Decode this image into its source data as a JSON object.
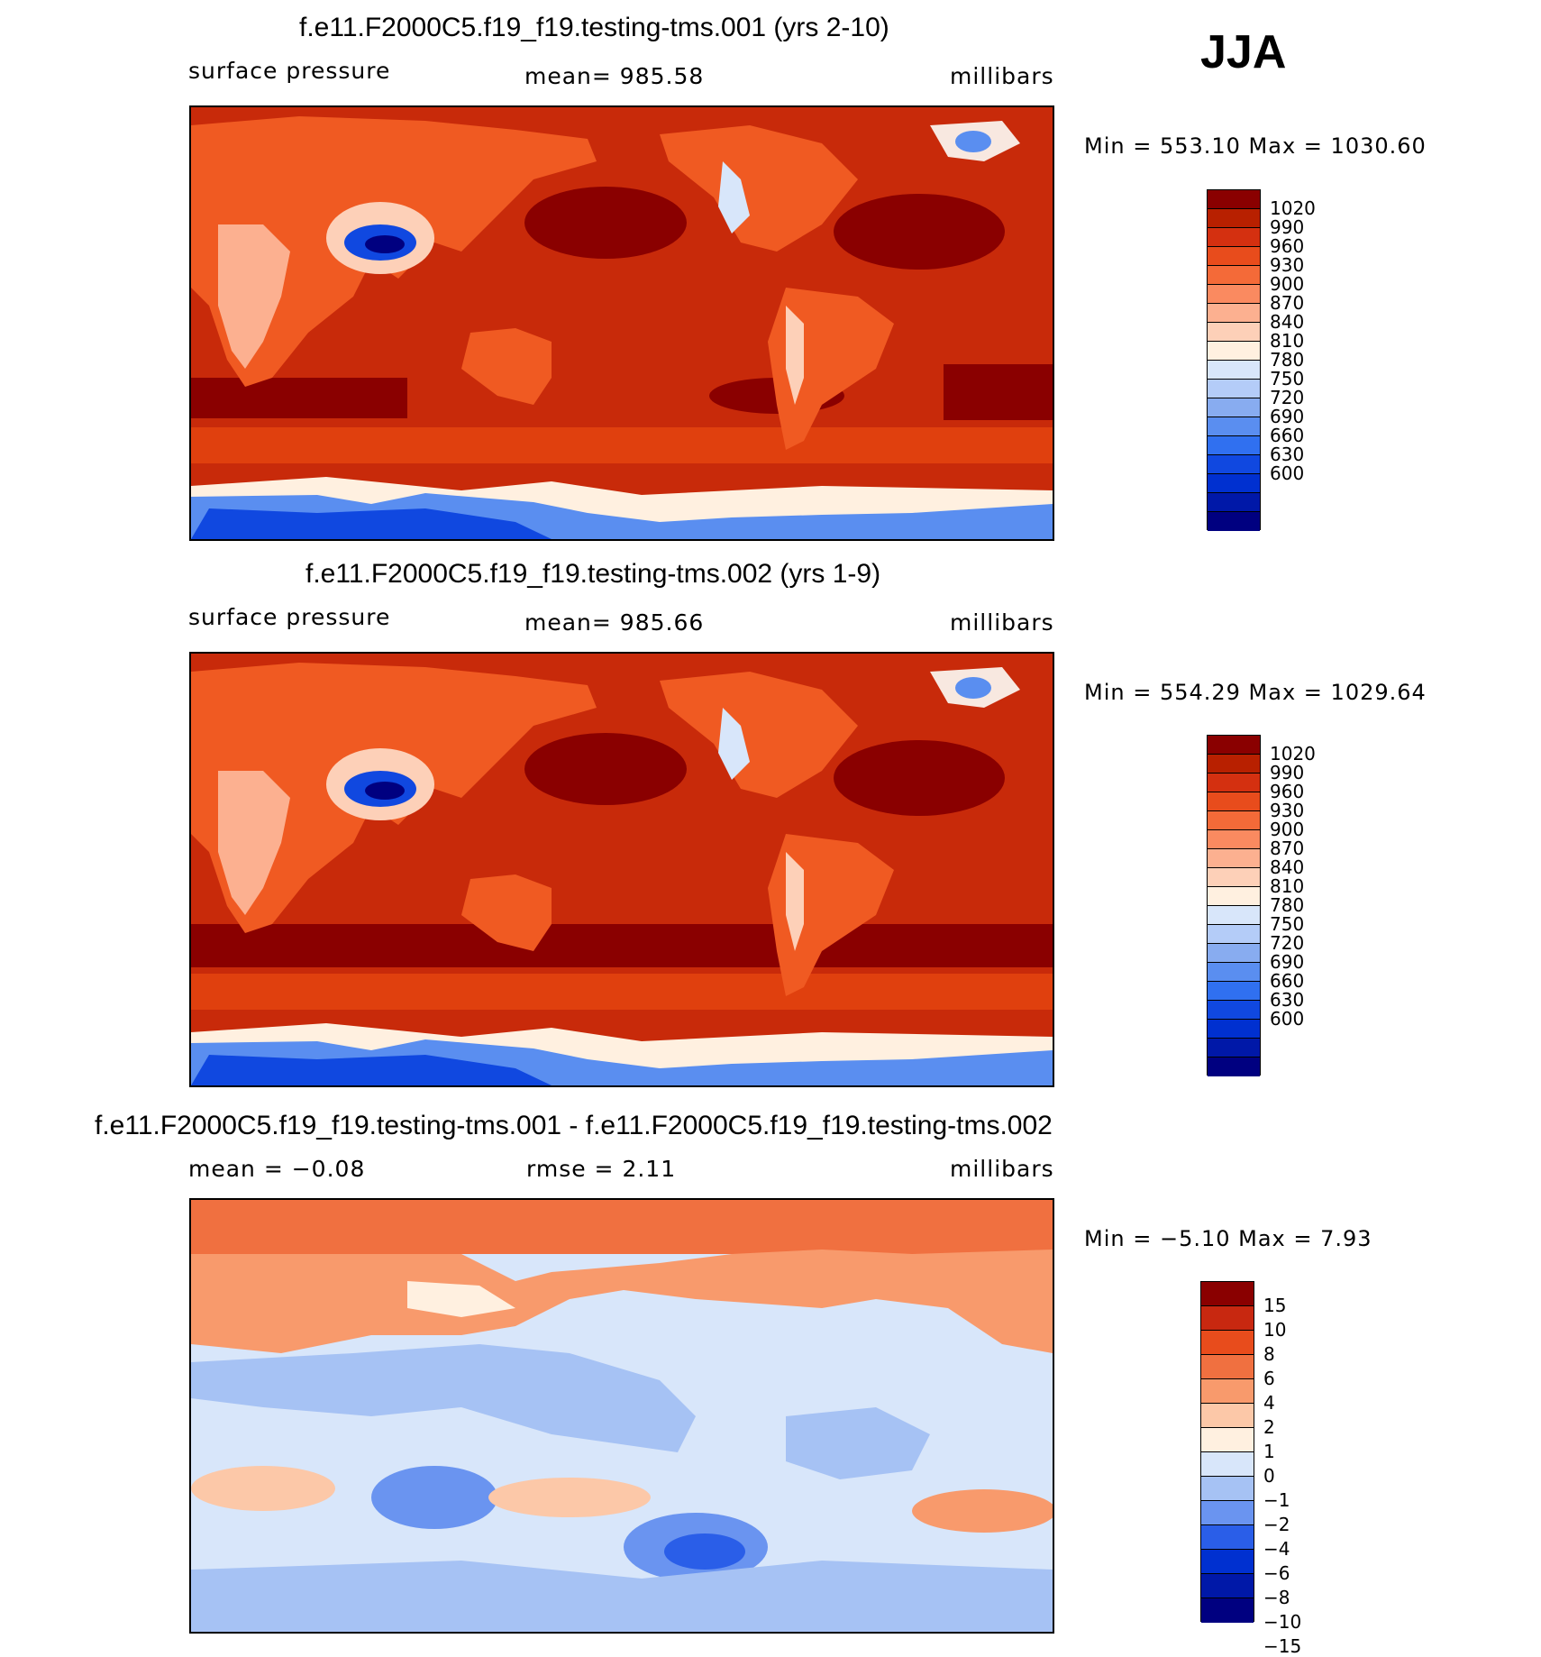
{
  "season": "JJA",
  "palettes": {
    "abs": [
      "#000080",
      "#0018a8",
      "#0030d0",
      "#1048e0",
      "#3070f0",
      "#5a8ef0",
      "#88acf0",
      "#b4ccf8",
      "#d8e6fa",
      "#fff0e0",
      "#fdd0b8",
      "#fcb090",
      "#fa8a60",
      "#f46a38",
      "#e84c1c",
      "#d43010",
      "#b82000",
      "#8a0000"
    ],
    "diff": [
      "#000080",
      "#0018a8",
      "#0030d0",
      "#2a5ee8",
      "#6a94f0",
      "#a6c2f4",
      "#d8e6fa",
      "#fff0e0",
      "#fcc8a8",
      "#f89a6c",
      "#f07040",
      "#e84c1c",
      "#c82810",
      "#8a0000"
    ]
  },
  "chart_data": [
    {
      "type": "heatmap",
      "title": "f.e11.F2000C5.f19_f19.testing-tms.001 (yrs 2-10)",
      "variable": "surface pressure",
      "mean_label": "mean=  985.58",
      "units": "millibars",
      "minmax_label": "Min  =  553.10  Max  =  1030.60",
      "min": 553.1,
      "max": 1030.6,
      "mean": 985.58,
      "colorbar_levels": [
        "1020",
        "990",
        "960",
        "930",
        "900",
        "870",
        "840",
        "810",
        "780",
        "750",
        "720",
        "690",
        "660",
        "630",
        "600"
      ],
      "palette": "abs"
    },
    {
      "type": "heatmap",
      "title": "f.e11.F2000C5.f19_f19.testing-tms.002 (yrs 1-9)",
      "variable": "surface pressure",
      "mean_label": "mean=  985.66",
      "units": "millibars",
      "minmax_label": "Min  =  554.29  Max  =  1029.64",
      "min": 554.29,
      "max": 1029.64,
      "mean": 985.66,
      "colorbar_levels": [
        "1020",
        "990",
        "960",
        "930",
        "900",
        "870",
        "840",
        "810",
        "780",
        "750",
        "720",
        "690",
        "660",
        "630",
        "600"
      ],
      "palette": "abs"
    },
    {
      "type": "heatmap",
      "title": "f.e11.F2000C5.f19_f19.testing-tms.001 - f.e11.F2000C5.f19_f19.testing-tms.002",
      "mean_label": "mean  =   −0.08",
      "rmse_label": "rmse  =     2.11",
      "units": "millibars",
      "minmax_label": "Min  =   −5.10  Max  =     7.93",
      "min": -5.1,
      "max": 7.93,
      "mean": -0.08,
      "rmse": 2.11,
      "colorbar_levels": [
        "15",
        "10",
        "8",
        "6",
        "4",
        "2",
        "1",
        "0",
        "−1",
        "−2",
        "−4",
        "−6",
        "−8",
        "−10",
        "−15"
      ],
      "palette": "diff"
    }
  ]
}
